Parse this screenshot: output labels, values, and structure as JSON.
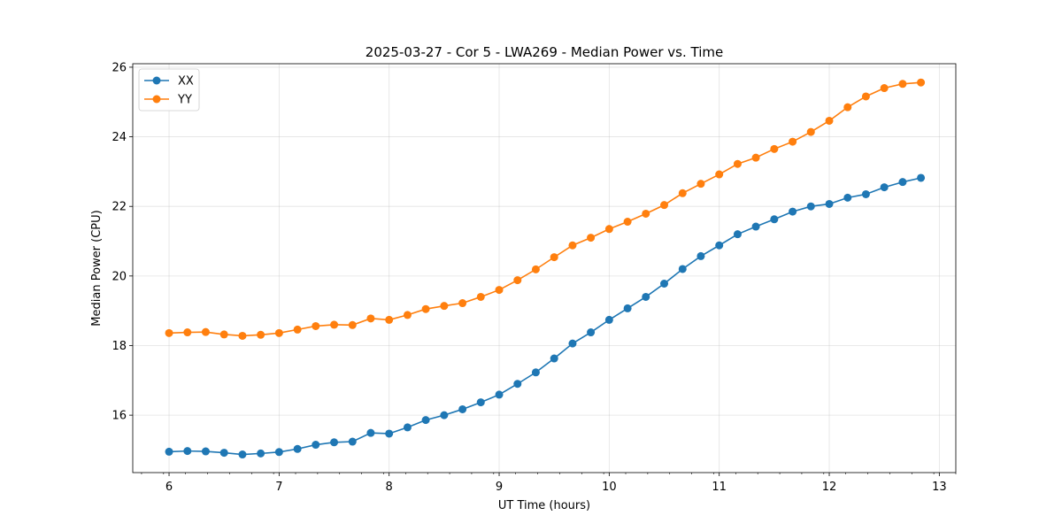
{
  "chart_data": {
    "type": "line",
    "title": "2025-03-27 - Cor 5 - LWA269 - Median Power vs. Time",
    "xlabel": "UT Time (hours)",
    "ylabel": "Median Power (CPU)",
    "xlim": [
      5.67,
      13.15
    ],
    "ylim": [
      14.35,
      26.1
    ],
    "xticks": [
      6,
      7,
      8,
      9,
      10,
      11,
      12,
      13
    ],
    "yticks": [
      16,
      18,
      20,
      22,
      24,
      26
    ],
    "grid": true,
    "legend_position": "top-left",
    "x": [
      6.0,
      6.167,
      6.333,
      6.5,
      6.667,
      6.833,
      7.0,
      7.167,
      7.333,
      7.5,
      7.667,
      7.833,
      8.0,
      8.167,
      8.333,
      8.5,
      8.667,
      8.833,
      9.0,
      9.167,
      9.333,
      9.5,
      9.667,
      9.833,
      10.0,
      10.167,
      10.333,
      10.5,
      10.667,
      10.833,
      11.0,
      11.167,
      11.333,
      11.5,
      11.667,
      11.833,
      12.0,
      12.167,
      12.333,
      12.5,
      12.667,
      12.833
    ],
    "series": [
      {
        "name": "XX",
        "color": "#1f77b4",
        "values": [
          14.95,
          14.97,
          14.96,
          14.92,
          14.87,
          14.9,
          14.94,
          15.03,
          15.15,
          15.22,
          15.24,
          15.49,
          15.47,
          15.65,
          15.86,
          16.0,
          16.17,
          16.37,
          16.59,
          16.9,
          17.23,
          17.63,
          18.06,
          18.38,
          18.74,
          19.07,
          19.4,
          19.78,
          20.2,
          20.57,
          20.88,
          21.2,
          21.42,
          21.63,
          21.85,
          22.0,
          22.07,
          22.25,
          22.35,
          22.55,
          22.7,
          22.82
        ]
      },
      {
        "name": "YY",
        "color": "#ff7f0e",
        "values": [
          18.36,
          18.38,
          18.39,
          18.32,
          18.28,
          18.31,
          18.36,
          18.46,
          18.56,
          18.6,
          18.59,
          18.78,
          18.74,
          18.88,
          19.05,
          19.14,
          19.22,
          19.4,
          19.6,
          19.88,
          20.19,
          20.54,
          20.88,
          21.1,
          21.35,
          21.56,
          21.79,
          22.04,
          22.38,
          22.65,
          22.92,
          23.22,
          23.4,
          23.65,
          23.86,
          24.14,
          24.46,
          24.85,
          25.16,
          25.4,
          25.52,
          25.56
        ]
      }
    ]
  }
}
